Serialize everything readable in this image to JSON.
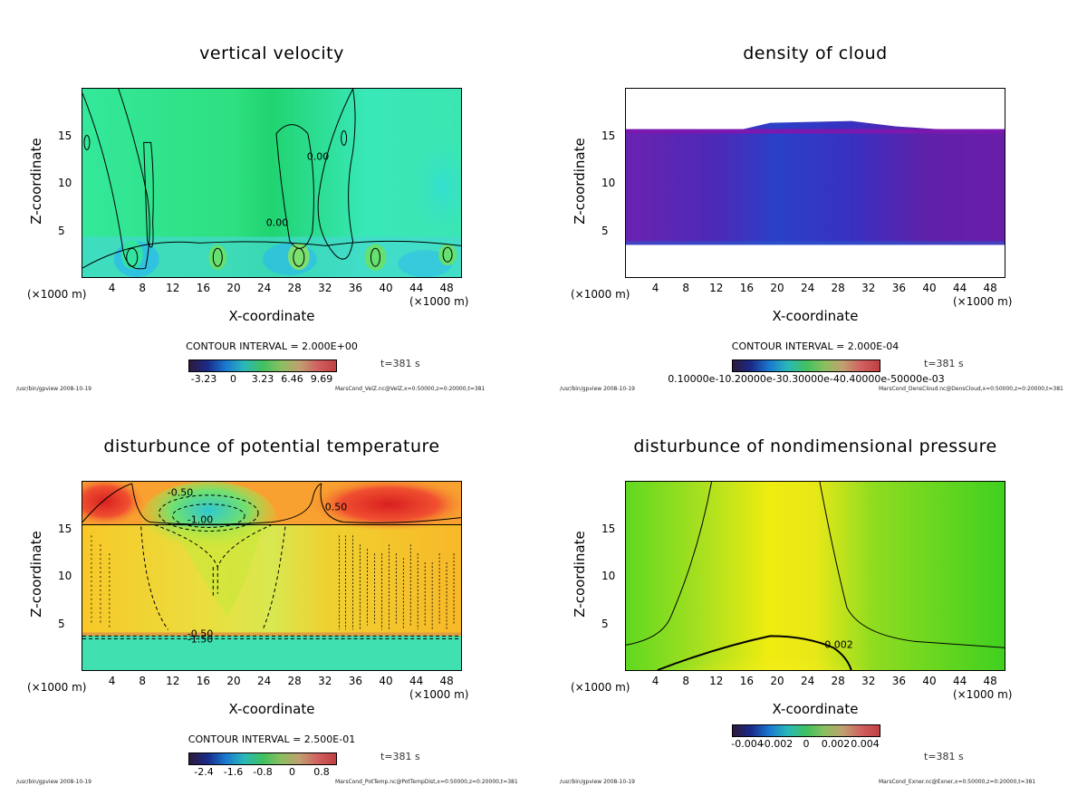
{
  "chart_data": [
    {
      "type": "heatmap",
      "title": "vertical velocity",
      "xlabel": "X-coordinate",
      "ylabel": "Z-coordinate",
      "x_unit_left": "(×1000 m)",
      "x_unit_right": "(×1000 m)",
      "xlim": [
        0,
        50
      ],
      "ylim": [
        0,
        20
      ],
      "x_ticks": [
        "4",
        "8",
        "12",
        "16",
        "20",
        "24",
        "28",
        "32",
        "36",
        "40",
        "44",
        "48"
      ],
      "y_ticks": [
        "5",
        "10",
        "15"
      ],
      "contour_interval": "CONTOUR INTERVAL = 2.000E+00",
      "colorbar_ticks": [
        "-3.23",
        "0",
        "3.23",
        "6.46",
        "9.69"
      ],
      "contour_labels": [
        "0.00",
        "0.00"
      ],
      "time": "t=381 s",
      "footer_left": "/usr/bin/gpview   2008-10-19",
      "footer_right": "MarsCond_VelZ.nc@VelZ,x=0:50000,z=0:20000,t=381"
    },
    {
      "type": "heatmap",
      "title": "density of cloud",
      "xlabel": "X-coordinate",
      "ylabel": "Z-coordinate",
      "x_unit_left": "(×1000 m)",
      "x_unit_right": "(×1000 m)",
      "xlim": [
        0,
        50
      ],
      "ylim": [
        0,
        20
      ],
      "x_ticks": [
        "4",
        "8",
        "12",
        "16",
        "20",
        "24",
        "28",
        "32",
        "36",
        "40",
        "44",
        "48"
      ],
      "y_ticks": [
        "5",
        "10",
        "15"
      ],
      "contour_interval": "CONTOUR INTERVAL = 2.000E-04",
      "colorbar_ticks": [
        "0.10000e-10.20000e-30.30000e-40.40000e-50000e-03"
      ],
      "contour_labels": [],
      "time": "t=381 s",
      "footer_left": "/usr/bin/gpview   2008-10-19",
      "footer_right": "MarsCond_DensCloud.nc@DensCloud,x=0:50000,z=0:20000,t=381"
    },
    {
      "type": "heatmap",
      "title": "disturbunce of potential temperature",
      "xlabel": "X-coordinate",
      "ylabel": "Z-coordinate",
      "x_unit_left": "(×1000 m)",
      "x_unit_right": "(×1000 m)",
      "xlim": [
        0,
        50
      ],
      "ylim": [
        0,
        20
      ],
      "x_ticks": [
        "4",
        "8",
        "12",
        "16",
        "20",
        "24",
        "28",
        "32",
        "36",
        "40",
        "44",
        "48"
      ],
      "y_ticks": [
        "5",
        "10",
        "15"
      ],
      "contour_interval": "CONTOUR INTERVAL = 2.500E-01",
      "colorbar_ticks": [
        "-2.4",
        "-1.6",
        "-0.8",
        "0",
        "0.8"
      ],
      "contour_labels": [
        "-0.50",
        "-1.00",
        "0.50",
        "-0.50",
        "-1.50"
      ],
      "time": "t=381 s",
      "footer_left": "/usr/bin/gpview   2008-10-19",
      "footer_right": "MarsCond_PotTemp.nc@PotTempDist,x=0:50000,z=0:20000,t=381"
    },
    {
      "type": "heatmap",
      "title": "disturbunce of nondimensional pressure",
      "xlabel": "X-coordinate",
      "ylabel": "Z-coordinate",
      "x_unit_left": "(×1000 m)",
      "x_unit_right": "(×1000 m)",
      "xlim": [
        0,
        50
      ],
      "ylim": [
        0,
        20
      ],
      "x_ticks": [
        "4",
        "8",
        "12",
        "16",
        "20",
        "24",
        "28",
        "32",
        "36",
        "40",
        "44",
        "48"
      ],
      "y_ticks": [
        "5",
        "10",
        "15"
      ],
      "contour_interval": "",
      "colorbar_ticks": [
        "-0.004",
        "-0.002",
        "0",
        "0.002",
        "0.004"
      ],
      "contour_labels": [
        "0.002"
      ],
      "time": "t=381 s",
      "footer_left": "/usr/bin/gpview   2008-10-19",
      "footer_right": "MarsCond_Exner.nc@Exner,x=0:50000,z=0:20000,t=381"
    }
  ]
}
